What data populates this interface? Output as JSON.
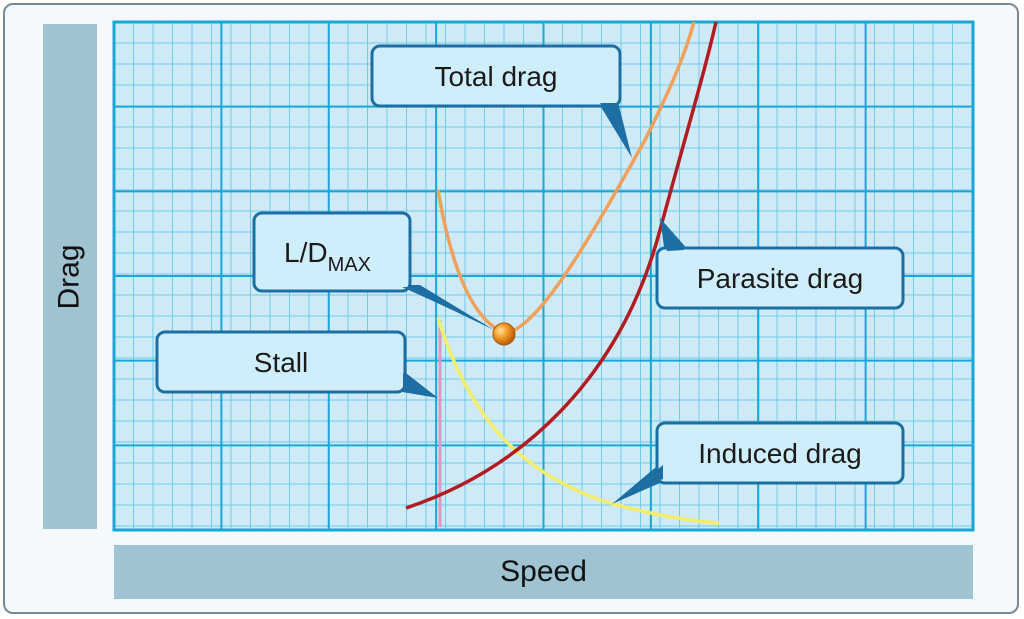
{
  "axes": {
    "x_label": "Speed",
    "y_label": "Drag"
  },
  "callouts": {
    "total_drag": "Total drag",
    "parasite_drag": "Parasite drag",
    "induced_drag": "Induced drag",
    "stall": "Stall",
    "ld_max_main": "L/D",
    "ld_max_sub": "MAX"
  },
  "colors": {
    "grid_bg": "#cfeaf7",
    "grid_major": "#1aa6d6",
    "grid_minor": "#6fcbea",
    "total_drag": "#f0a05a",
    "parasite_drag": "#b01c22",
    "induced_drag": "#f2ee6a",
    "stall_line": "#d79ac7",
    "callout_fill": "#cfeefb",
    "callout_stroke": "#1d6fa3",
    "ld_point": "#f09a1e"
  }
}
